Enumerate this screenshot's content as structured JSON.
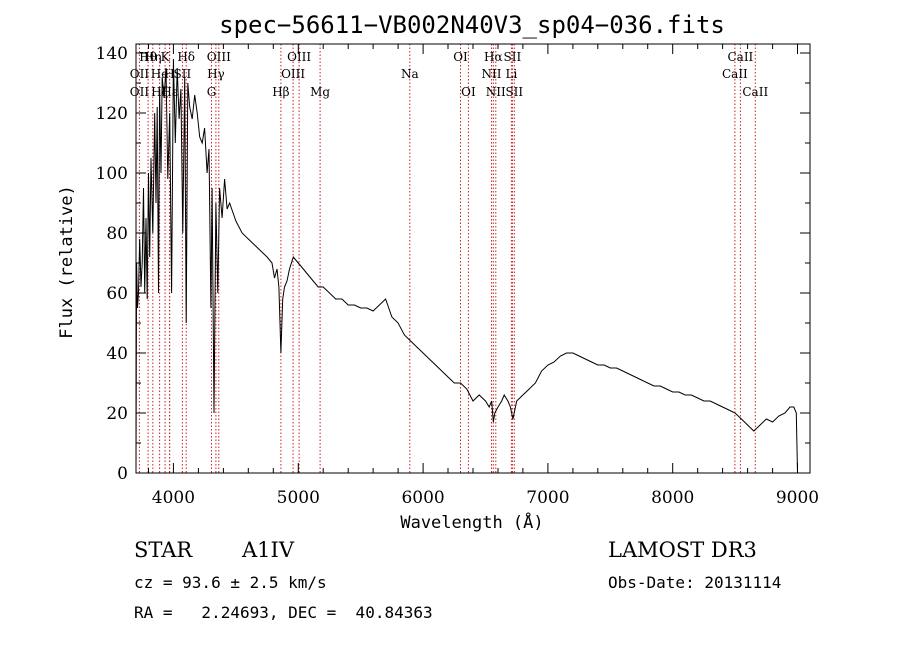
{
  "chart_data": {
    "type": "line",
    "title": "spec−56611−VB002N40V3_sp04−036.fits",
    "xlabel": "Wavelength (Å)",
    "ylabel": "Flux (relative)",
    "xlim": [
      3700,
      9100
    ],
    "ylim": [
      0,
      143
    ],
    "x_ticks": [
      4000,
      5000,
      6000,
      7000,
      8000,
      9000
    ],
    "y_ticks": [
      0,
      20,
      40,
      60,
      80,
      100,
      120,
      140
    ],
    "series": [
      {
        "name": "spectrum",
        "x": [
          3700,
          3705,
          3712,
          3720,
          3730,
          3740,
          3750,
          3760,
          3770,
          3780,
          3790,
          3800,
          3810,
          3820,
          3835,
          3850,
          3860,
          3870,
          3880,
          3889,
          3900,
          3910,
          3925,
          3940,
          3955,
          3970,
          3985,
          4000,
          4015,
          4030,
          4045,
          4060,
          4075,
          4090,
          4102,
          4115,
          4130,
          4150,
          4170,
          4190,
          4210,
          4230,
          4250,
          4270,
          4285,
          4300,
          4310,
          4325,
          4340,
          4355,
          4370,
          4390,
          4410,
          4430,
          4450,
          4500,
          4550,
          4600,
          4650,
          4700,
          4750,
          4790,
          4810,
          4830,
          4845,
          4861,
          4875,
          4890,
          4910,
          4930,
          4960,
          5000,
          5040,
          5080,
          5120,
          5160,
          5200,
          5250,
          5300,
          5350,
          5400,
          5450,
          5500,
          5550,
          5600,
          5650,
          5700,
          5750,
          5800,
          5850,
          5900,
          5950,
          6000,
          6050,
          6100,
          6150,
          6200,
          6250,
          6300,
          6350,
          6400,
          6450,
          6500,
          6530,
          6550,
          6563,
          6575,
          6600,
          6630,
          6650,
          6680,
          6700,
          6720,
          6750,
          6800,
          6850,
          6900,
          6950,
          7000,
          7050,
          7100,
          7150,
          7200,
          7250,
          7300,
          7350,
          7400,
          7450,
          7500,
          7550,
          7600,
          7650,
          7700,
          7750,
          7800,
          7850,
          7900,
          7950,
          8000,
          8050,
          8100,
          8150,
          8200,
          8250,
          8300,
          8350,
          8400,
          8450,
          8500,
          8550,
          8600,
          8650,
          8700,
          8750,
          8800,
          8850,
          8900,
          8940,
          8970,
          8990,
          9000
        ],
        "y": [
          2,
          70,
          55,
          60,
          78,
          62,
          70,
          95,
          60,
          85,
          58,
          100,
          72,
          105,
          80,
          120,
          90,
          122,
          60,
          128,
          100,
          132,
          125,
          135,
          98,
          120,
          60,
          138,
          110,
          135,
          118,
          128,
          80,
          132,
          50,
          130,
          122,
          118,
          126,
          120,
          112,
          110,
          115,
          100,
          108,
          55,
          95,
          20,
          90,
          60,
          95,
          85,
          98,
          88,
          90,
          84,
          80,
          78,
          76,
          74,
          72,
          70,
          65,
          68,
          62,
          40,
          58,
          62,
          64,
          68,
          72,
          70,
          68,
          66,
          64,
          62,
          62,
          60,
          58,
          58,
          56,
          56,
          55,
          55,
          54,
          56,
          58,
          52,
          50,
          46,
          44,
          42,
          40,
          38,
          36,
          34,
          32,
          30,
          30,
          28,
          24,
          26,
          24,
          22,
          24,
          17,
          20,
          22,
          24,
          26,
          24,
          22,
          18,
          24,
          26,
          28,
          30,
          34,
          36,
          37,
          39,
          40,
          40,
          39,
          38,
          37,
          36,
          36,
          35,
          35,
          34,
          33,
          32,
          31,
          30,
          29,
          29,
          28,
          27,
          27,
          26,
          26,
          25,
          24,
          24,
          23,
          22,
          21,
          20,
          18,
          16,
          14,
          16,
          18,
          17,
          19,
          20,
          22,
          22,
          20,
          0
        ]
      }
    ],
    "annotations": [
      {
        "label": "Hθ",
        "x": 3797,
        "row": 1
      },
      {
        "label": "OII",
        "x": 3727,
        "row": 2
      },
      {
        "label": "OII",
        "x": 3727,
        "row": 3
      },
      {
        "label": "Hη",
        "x": 3835,
        "row": 1
      },
      {
        "label": "He",
        "x": 3889,
        "row": 2
      },
      {
        "label": "Hζ",
        "x": 3889,
        "row": 3
      },
      {
        "label": "K",
        "x": 3933,
        "row": 1
      },
      {
        "label": "Hε",
        "x": 3970,
        "row": 3
      },
      {
        "label": "H",
        "x": 3968,
        "row": 2
      },
      {
        "label": "SII",
        "x": 4072,
        "row": 2
      },
      {
        "label": "Hδ",
        "x": 4102,
        "row": 1
      },
      {
        "label": "OIII",
        "x": 4363,
        "row": 1
      },
      {
        "label": "Hγ",
        "x": 4340,
        "row": 2
      },
      {
        "label": "G",
        "x": 4305,
        "row": 3
      },
      {
        "label": "Hβ",
        "x": 4861,
        "row": 3
      },
      {
        "label": "OIII",
        "x": 5007,
        "row": 1
      },
      {
        "label": "OIII",
        "x": 4959,
        "row": 2
      },
      {
        "label": "Mg",
        "x": 5175,
        "row": 3
      },
      {
        "label": "Na",
        "x": 5894,
        "row": 2
      },
      {
        "label": "OI",
        "x": 6300,
        "row": 1
      },
      {
        "label": "OI",
        "x": 6363,
        "row": 3
      },
      {
        "label": "Hα",
        "x": 6563,
        "row": 1
      },
      {
        "label": "NII",
        "x": 6548,
        "row": 2
      },
      {
        "label": "NII",
        "x": 6583,
        "row": 3
      },
      {
        "label": "SII",
        "x": 6716,
        "row": 1
      },
      {
        "label": "Li",
        "x": 6708,
        "row": 2
      },
      {
        "label": "SII",
        "x": 6731,
        "row": 3
      },
      {
        "label": "CaII",
        "x": 8542,
        "row": 1
      },
      {
        "label": "CaII",
        "x": 8498,
        "row": 2
      },
      {
        "label": "CaII",
        "x": 8662,
        "row": 3
      }
    ],
    "line_markers": [
      3727,
      3797,
      3835,
      3889,
      3933,
      3968,
      3970,
      4072,
      4102,
      4305,
      4340,
      4363,
      4861,
      4959,
      5007,
      5175,
      5894,
      6300,
      6363,
      6548,
      6563,
      6583,
      6708,
      6716,
      6731,
      8498,
      8542,
      8662
    ],
    "colors": {
      "line": "#000000",
      "marker": "#cc2222",
      "axis": "#000000"
    }
  },
  "info": {
    "class": "STAR",
    "subclass": "A1IV",
    "survey": "LAMOST DR3",
    "cz": "cz = 93.6 ± 2.5 km/s",
    "obs_date": "Obs-Date: 20131114",
    "radec": "RA =   2.24693, DEC =  40.84363"
  }
}
